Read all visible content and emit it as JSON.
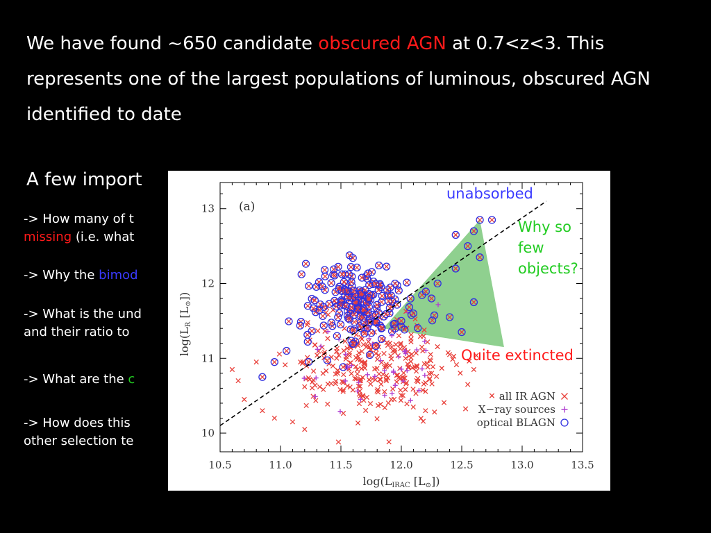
{
  "headline": {
    "part1": "We have found ~650 candidate ",
    "highlight": "obscured AGN",
    "part2": " at 0.7<z<3.  This represents one of the largest populations of luminous, obscured AGN identified to date"
  },
  "subhead": "A few import",
  "questions": [
    {
      "line1": "-> How many of t",
      "line2_highlight": "missing",
      "line2_rest": " (i.e. what"
    },
    {
      "prefix": "-> Why the ",
      "highlight": "bimod"
    },
    {
      "line1": "-> What is the und",
      "line2": "and their ratio to"
    },
    {
      "prefix": "-> What are the ",
      "highlight": "c"
    },
    {
      "line1": "-> How does this ",
      "line2": "other selection te"
    }
  ],
  "colors": {
    "red": "#ff1a1a",
    "blue": "#3a3aff",
    "green": "#22cc22",
    "triangle_fill": "#8fd08f",
    "ir_agn": "#e8403a",
    "xray": "#b040d0",
    "blagn": "#3030e0"
  },
  "chart_data": {
    "type": "scatter",
    "panel_label": "(a)",
    "xlabel_main": "log(L",
    "xlabel_sub": "IRAC",
    "xlabel_unit": " [L",
    "xlabel_close": "])",
    "ylabel_main": "log(L",
    "ylabel_sub": "R",
    "ylabel_unit": " [L",
    "ylabel_close": "])",
    "xlim": [
      10.5,
      13.5
    ],
    "ylim": [
      9.75,
      13.35
    ],
    "xticks": [
      "10.5",
      "11.0",
      "11.5",
      "12.0",
      "12.5",
      "13.0",
      "13.5"
    ],
    "yticks": [
      "10",
      "11",
      "12",
      "13"
    ],
    "dividing_line": [
      [
        10.5,
        10.1
      ],
      [
        13.2,
        13.1
      ]
    ],
    "triangle": [
      [
        11.85,
        11.4
      ],
      [
        12.65,
        12.85
      ],
      [
        12.85,
        11.15
      ]
    ],
    "legend": [
      {
        "name": "all IR AGN",
        "marker": "x"
      },
      {
        "name": "X−ray sources",
        "marker": "+"
      },
      {
        "name": "optical BLAGN",
        "marker": "o"
      }
    ],
    "legend_position": "bottom-right",
    "annotations": {
      "unabsorbed": "unabsorbed",
      "why1": "Why so",
      "why2": "few",
      "why3": "objects?",
      "extincted": "Quite extincted"
    },
    "series": [
      {
        "key": "ir_agn",
        "name": "all IR AGN",
        "marker": "x",
        "center": [
          11.75,
          10.9
        ],
        "spread": [
          0.32,
          0.33
        ],
        "count": 300,
        "extra": [
          [
            10.85,
            10.3
          ],
          [
            10.7,
            10.45
          ],
          [
            10.65,
            10.7
          ],
          [
            10.95,
            10.2
          ],
          [
            11.1,
            10.15
          ],
          [
            12.55,
            10.65
          ],
          [
            12.6,
            10.85
          ],
          [
            12.4,
            11.05
          ],
          [
            12.75,
            10.5
          ],
          [
            10.8,
            10.95
          ],
          [
            11.2,
            10.05
          ],
          [
            12.2,
            10.3
          ],
          [
            10.6,
            10.85
          ]
        ]
      },
      {
        "key": "xray",
        "name": "X−ray sources",
        "marker": "+",
        "center": [
          11.75,
          10.95
        ],
        "spread": [
          0.3,
          0.3
        ],
        "count": 45
      },
      {
        "key": "blagn",
        "name": "optical BLAGN",
        "marker": "o",
        "center": [
          11.65,
          11.75
        ],
        "spread": [
          0.22,
          0.28
        ],
        "count": 200,
        "extra": [
          [
            12.55,
            12.5
          ],
          [
            12.6,
            12.7
          ],
          [
            12.65,
            12.85
          ],
          [
            12.45,
            12.2
          ],
          [
            12.3,
            12.0
          ],
          [
            12.25,
            11.8
          ],
          [
            12.4,
            11.55
          ],
          [
            12.5,
            11.35
          ],
          [
            12.6,
            11.75
          ],
          [
            12.65,
            12.35
          ],
          [
            12.75,
            12.85
          ],
          [
            12.45,
            12.65
          ],
          [
            10.85,
            10.75
          ],
          [
            10.95,
            10.95
          ],
          [
            11.05,
            11.1
          ],
          [
            12.1,
            11.6
          ],
          [
            12.0,
            11.5
          ],
          [
            11.95,
            11.4
          ]
        ]
      }
    ]
  }
}
